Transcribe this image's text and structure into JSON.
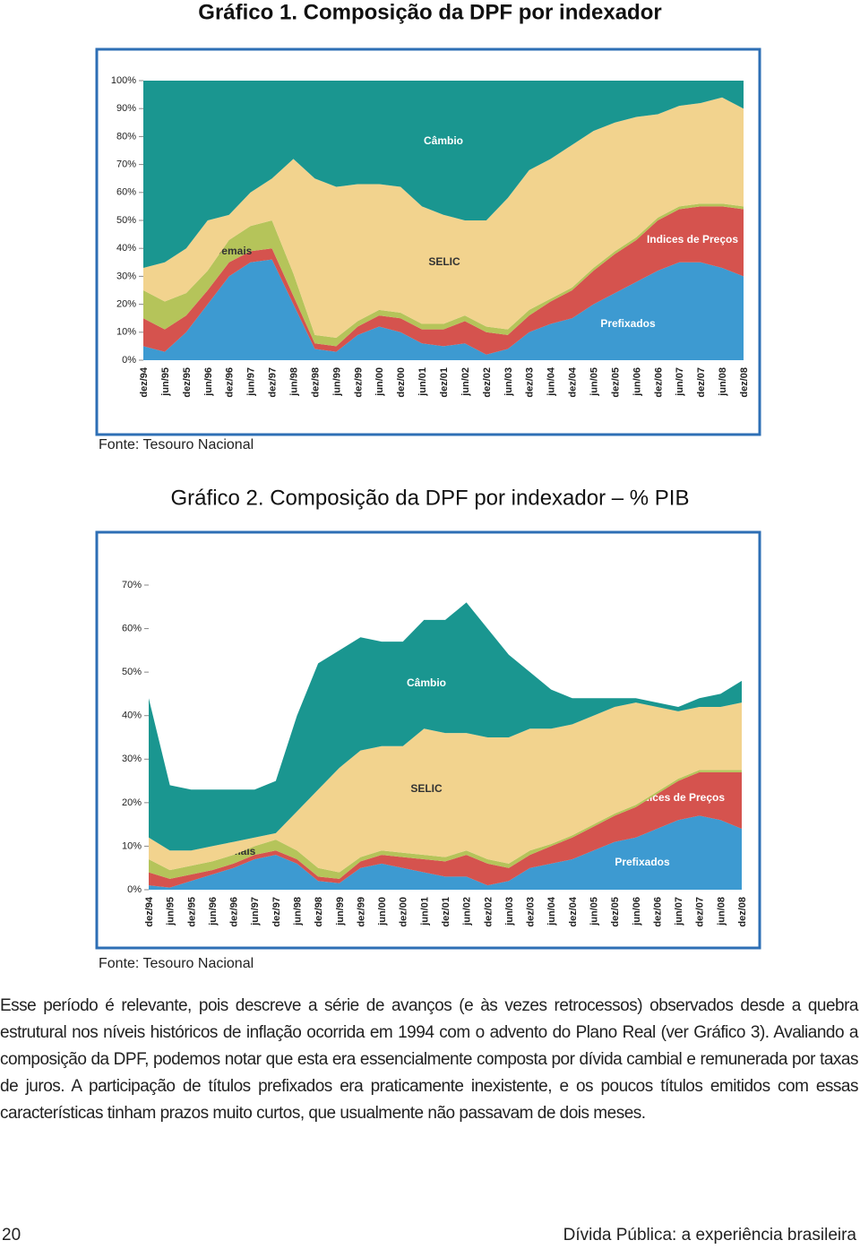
{
  "chart_data": [
    {
      "type": "stacked_area",
      "title": "Gráfico 1. Composição da DPF por indexador",
      "source": "Fonte: Tesouro Nacional",
      "categories": [
        "dez/94",
        "jun/95",
        "dez/95",
        "jun/96",
        "dez/96",
        "jun/97",
        "dez/97",
        "jun/98",
        "dez/98",
        "jun/99",
        "dez/99",
        "jun/00",
        "dez/00",
        "jun/01",
        "dez/01",
        "jun/02",
        "dez/02",
        "jun/03",
        "dez/03",
        "jun/04",
        "dez/04",
        "jun/05",
        "dez/05",
        "jun/06",
        "dez/06",
        "jun/07",
        "dez/07",
        "jun/08",
        "dez/08"
      ],
      "series": [
        {
          "name": "Prefixados",
          "color": "#3d9ad1",
          "values": [
            5,
            3,
            10,
            20,
            30,
            35,
            36,
            20,
            4,
            3,
            9,
            12,
            10,
            6,
            5,
            6,
            2,
            4,
            10,
            13,
            15,
            20,
            24,
            28,
            32,
            35,
            35,
            33,
            30
          ]
        },
        {
          "name": "Indices de Preços",
          "color": "#d5534e",
          "values": [
            10,
            8,
            6,
            5,
            5,
            4,
            4,
            3,
            2,
            2,
            3,
            4,
            5,
            5,
            6,
            8,
            8,
            5,
            6,
            8,
            10,
            12,
            14,
            15,
            18,
            19,
            20,
            22,
            24
          ]
        },
        {
          "name": "Demais",
          "color": "#b5c45a",
          "values": [
            10,
            10,
            8,
            7,
            8,
            9,
            10,
            8,
            3,
            3,
            2,
            2,
            2,
            2,
            2,
            2,
            2,
            2,
            2,
            1,
            1,
            1,
            1,
            1,
            1,
            1,
            1,
            1,
            1
          ]
        },
        {
          "name": "SELIC",
          "color": "#f2d38e",
          "values": [
            8,
            14,
            16,
            18,
            9,
            12,
            15,
            41,
            56,
            54,
            49,
            45,
            45,
            42,
            39,
            34,
            38,
            47,
            50,
            50,
            51,
            49,
            46,
            43,
            37,
            36,
            36,
            38,
            35
          ]
        },
        {
          "name": "Câmbio",
          "color": "#1a9690",
          "values": [
            67,
            65,
            60,
            50,
            48,
            40,
            35,
            28,
            35,
            38,
            37,
            37,
            38,
            45,
            48,
            50,
            50,
            42,
            32,
            28,
            23,
            18,
            15,
            13,
            12,
            9,
            8,
            6,
            10
          ]
        }
      ],
      "ylim": [
        0,
        100
      ],
      "yticks": [
        {
          "value": 0,
          "label": "0%"
        },
        {
          "value": 10,
          "label": "10%"
        },
        {
          "value": 20,
          "label": "20%"
        },
        {
          "value": 30,
          "label": "30%"
        },
        {
          "value": 40,
          "label": "40%"
        },
        {
          "value": 50,
          "label": "50%"
        },
        {
          "value": 60,
          "label": "60%"
        },
        {
          "value": 70,
          "label": "70%"
        },
        {
          "value": 80,
          "label": "80%"
        },
        {
          "value": 90,
          "label": "90%"
        },
        {
          "value": 100,
          "label": "100%"
        }
      ]
    },
    {
      "type": "stacked_area",
      "title": "Gráfico 2. Composição da DPF por indexador – % PIB",
      "source": "Fonte: Tesouro Nacional",
      "categories": [
        "dez/94",
        "jun/95",
        "dez/95",
        "jun/96",
        "dez/96",
        "jun/97",
        "dez/97",
        "jun/98",
        "dez/98",
        "jun/99",
        "dez/99",
        "jun/00",
        "dez/00",
        "jun/01",
        "dez/01",
        "jun/02",
        "dez/02",
        "jun/03",
        "dez/03",
        "jun/04",
        "dez/04",
        "jun/05",
        "dez/05",
        "jun/06",
        "dez/06",
        "jun/07",
        "dez/07",
        "jun/08",
        "dez/08"
      ],
      "series": [
        {
          "name": "Prefixados",
          "color": "#3d9ad1",
          "values": [
            1,
            0.5,
            2,
            3.5,
            5,
            7,
            8,
            6,
            2,
            1.5,
            5,
            6,
            5,
            4,
            3,
            3,
            1,
            2,
            5,
            6,
            7,
            9,
            11,
            12,
            14,
            16,
            17,
            16,
            14
          ]
        },
        {
          "name": "Indices de Preços",
          "color": "#d5534e",
          "values": [
            3,
            2,
            1.5,
            1,
            1,
            1,
            1,
            1,
            1,
            1,
            1.5,
            2,
            2.5,
            3,
            3.5,
            5,
            5,
            3,
            3,
            4,
            5,
            5.5,
            6,
            7,
            8,
            9,
            10,
            11,
            13
          ]
        },
        {
          "name": "Demais",
          "color": "#b5c45a",
          "values": [
            3,
            2,
            2,
            2,
            2,
            2,
            2.5,
            2,
            2,
            1.5,
            1,
            1,
            1,
            1,
            1,
            1,
            1,
            1,
            1,
            0.5,
            0.5,
            0.5,
            0.5,
            0.5,
            0.5,
            0.5,
            0.5,
            0.5,
            0.5
          ]
        },
        {
          "name": "SELIC",
          "color": "#f2d38e",
          "values": [
            5,
            4.5,
            3.5,
            3.5,
            3,
            2,
            1.5,
            9,
            18,
            24,
            24.5,
            24,
            24.5,
            29,
            28.5,
            27,
            28,
            29,
            28,
            26.5,
            25.5,
            25,
            24.5,
            23.5,
            19.5,
            15.5,
            14.5,
            14.5,
            15.5
          ]
        },
        {
          "name": "Câmbio",
          "color": "#1a9690",
          "values": [
            32,
            15,
            14,
            13,
            12,
            11,
            12,
            22,
            29,
            27,
            26,
            24,
            24,
            25,
            26,
            30,
            25,
            19,
            13,
            9,
            6,
            4,
            2,
            1,
            1,
            1,
            2,
            3,
            5
          ]
        }
      ],
      "ylim": [
        0,
        70
      ],
      "yticks": [
        {
          "value": 0,
          "label": "0%"
        },
        {
          "value": 10,
          "label": "10%"
        },
        {
          "value": 20,
          "label": "20%"
        },
        {
          "value": 30,
          "label": "30%"
        },
        {
          "value": 40,
          "label": "40%"
        },
        {
          "value": 50,
          "label": "50%"
        },
        {
          "value": 60,
          "label": "60%"
        },
        {
          "value": 70,
          "label": "70%"
        }
      ]
    }
  ],
  "document": {
    "paragraph": "Esse período é relevante, pois descreve a série de avanços (e às vezes retrocessos) observados desde a quebra estrutural nos níveis históricos de inflação ocorrida em 1994 com o advento do Plano Real (ver Gráfico 3). Avaliando a composição da DPF, podemos notar que esta era essencialmente composta por dívida cambial e remunerada por taxas de juros. A participação de títulos prefixados era praticamente inexistente, e os poucos títulos emitidos com essas características tinham prazos muito curtos, que usualmente não passavam de dois meses.",
    "page_number": "20",
    "running_title": "Dívida Pública: a experiência brasileira"
  }
}
